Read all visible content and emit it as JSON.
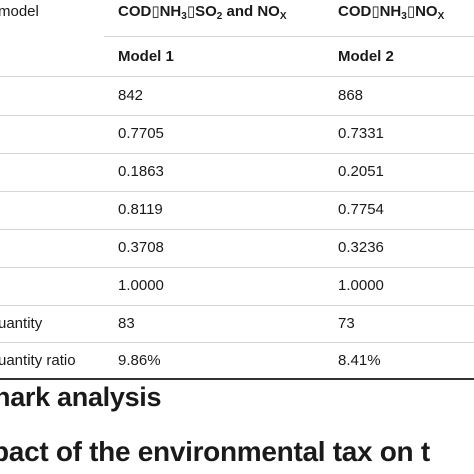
{
  "table": {
    "corner_label": "model",
    "col2_header_pre": "COD▯NH",
    "col2_header_sub1": "3",
    "col2_header_mid": "▯SO",
    "col2_header_sub2": "2",
    "col2_header_post": " and NO",
    "col2_header_sub3": "X",
    "col3_header_pre": "COD▯NH",
    "col3_header_sub1": "3",
    "col3_header_mid": "▯NO",
    "col3_header_sub2": "X",
    "model_row": {
      "col2": "Model 1",
      "col3": "Model 2"
    },
    "rows": [
      {
        "label": "",
        "col2": "842",
        "col3": "868"
      },
      {
        "label": "",
        "col2": "0.7705",
        "col3": "0.7331"
      },
      {
        "label": "",
        "col2": "0.1863",
        "col3": "0.2051"
      },
      {
        "label": "",
        "col2": "0.8119",
        "col3": "0.7754"
      },
      {
        "label": "",
        "col2": "0.3708",
        "col3": "0.3236"
      },
      {
        "label": "",
        "col2": "1.0000",
        "col3": "1.0000"
      },
      {
        "label": "uantity",
        "col2": "83",
        "col3": "73"
      },
      {
        "label": "uantity ratio",
        "col2": "9.86%",
        "col3": "8.41%"
      }
    ]
  },
  "headings": {
    "section": "hark analysis",
    "subsection": "pact of the environmental tax on t"
  }
}
